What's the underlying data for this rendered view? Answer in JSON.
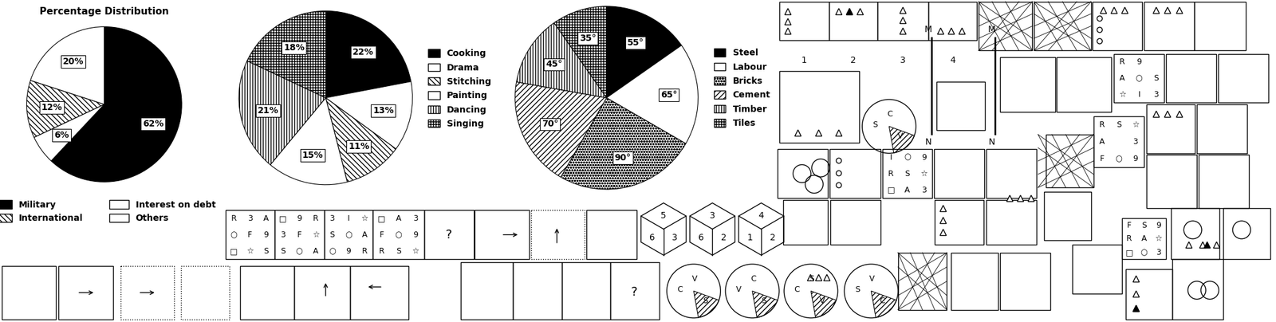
{
  "chart_data": [
    {
      "type": "pie",
      "title": "Percentage Distribution",
      "categories": [
        "Military",
        "Interest on debt",
        "International",
        "Others"
      ],
      "values": [
        62,
        6,
        12,
        20
      ],
      "value_labels": [
        "62%",
        "6%",
        "12%",
        "20%"
      ],
      "colors": [
        "#000000",
        "#ffffff",
        "#ffffff",
        "#ffffff"
      ],
      "data_labels": true,
      "legend": "bottom"
    },
    {
      "type": "pie",
      "categories": [
        "Cooking",
        "Drama",
        "Stitching",
        "Painting",
        "Dancing",
        "Singing"
      ],
      "values": [
        22,
        13,
        11,
        15,
        21,
        18
      ],
      "value_labels": [
        "22%",
        "13%",
        "11%",
        "15%",
        "21%",
        "18%"
      ],
      "colors": [
        "#000000",
        "#ffffff",
        "#ffffff",
        "#ffffff",
        "#ffffff",
        "#ffffff"
      ],
      "data_labels": true,
      "legend": "right"
    },
    {
      "type": "pie",
      "categories": [
        "Steel",
        "Labour",
        "Bricks",
        "Cement",
        "Timber",
        "Tiles"
      ],
      "values": [
        55,
        65,
        90,
        70,
        45,
        35
      ],
      "value_labels": [
        "55°",
        "65°",
        "90°",
        "70°",
        "45°",
        "35°"
      ],
      "colors": [
        "#000000",
        "#ffffff",
        "#ffffff",
        "#ffffff",
        "#ffffff",
        "#ffffff"
      ],
      "data_labels": true,
      "legend": "right"
    }
  ],
  "figures": {
    "answer_numbers": [
      "1",
      "2",
      "3",
      "4"
    ],
    "mirror_labels": [
      "M",
      "N"
    ],
    "question_mark": "?",
    "letter_grids": [
      [
        [
          "R",
          "3",
          "A"
        ],
        [
          "○",
          "F",
          "9"
        ],
        [
          "□",
          "☆",
          "S"
        ]
      ],
      [
        [
          "□",
          "9",
          "R"
        ],
        [
          "3",
          "F",
          "☆"
        ],
        [
          "S",
          "○",
          "A"
        ]
      ],
      [
        [
          "3",
          "I",
          "☆"
        ],
        [
          "S",
          "○",
          "A"
        ],
        [
          "○",
          "9",
          "R"
        ]
      ],
      [
        [
          "□",
          "A",
          "3"
        ],
        [
          "F",
          "○",
          "9"
        ],
        [
          "R",
          "S",
          "☆"
        ]
      ],
      [
        [
          "R",
          "9",
          null
        ],
        [
          "A",
          "○",
          "S"
        ],
        [
          "☆",
          "I",
          "3"
        ]
      ],
      [
        [
          "R",
          "S",
          "☆"
        ],
        [
          "A",
          null,
          "3"
        ],
        [
          "F",
          "○",
          "9"
        ]
      ],
      [
        [
          "I",
          "○",
          "9"
        ],
        [
          "R",
          "S",
          "☆"
        ],
        [
          "□",
          "A",
          "3"
        ]
      ],
      [
        [
          "F",
          "S",
          "9"
        ],
        [
          "R",
          "A",
          "☆"
        ],
        [
          "□",
          "○",
          "3"
        ]
      ]
    ],
    "dice": [
      [
        "5",
        "6",
        "3"
      ],
      [
        "3",
        "6",
        "2"
      ],
      [
        "4",
        "1",
        "2"
      ]
    ],
    "circle_letters": [
      [
        "S",
        "C",
        "V"
      ],
      [
        "C",
        "V",
        "S"
      ],
      [
        "V",
        "C",
        "S"
      ],
      [
        "C",
        "S",
        "V"
      ],
      [
        "S",
        "V",
        "C"
      ]
    ]
  }
}
